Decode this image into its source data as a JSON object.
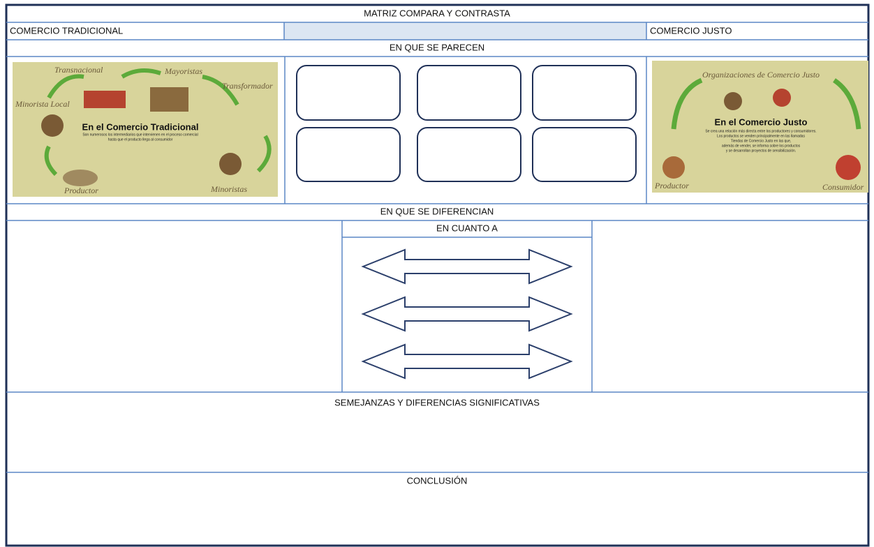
{
  "header": {
    "title": "MATRIZ COMPARA Y CONTRASTA",
    "left": "COMERCIO TRADICIONAL",
    "right": "COMERCIO JUSTO"
  },
  "sections": {
    "similarities": "EN QUE SE PARECEN",
    "differences": "EN QUE SE DIFERENCIAN",
    "regarding": "EN CUANTO A",
    "significant": "SEMEJANZAS Y DIFERENCIAS SIGNIFICATIVAS",
    "conclusion": "CONCLUSIÓN"
  },
  "images": {
    "traditional": {
      "title": "En el Comercio Tradicional",
      "caption_1": "Son numerosos los intermediarios que intervienen en el proceso comercial",
      "caption_2": "hasta que el producto llega al consumidor",
      "labels": [
        "Transnacional",
        "Mayoristas",
        "Transformador",
        "Minorista Local",
        "Productor",
        "Minoristas"
      ]
    },
    "fair": {
      "heading": "Organizaciones de Comercio Justo",
      "title": "En el Comercio Justo",
      "caption": [
        "Se crea una relación más directa entre los productores y consumidores.",
        "Los productos se venden principalmente en las llamadas",
        "Tiendas de Comercio Justo en las que,",
        "además de vender, se informa sobre los productos",
        "y se desarrollan proyectos de sensibilización."
      ],
      "labels": [
        "Productor",
        "Consumidor"
      ]
    }
  }
}
